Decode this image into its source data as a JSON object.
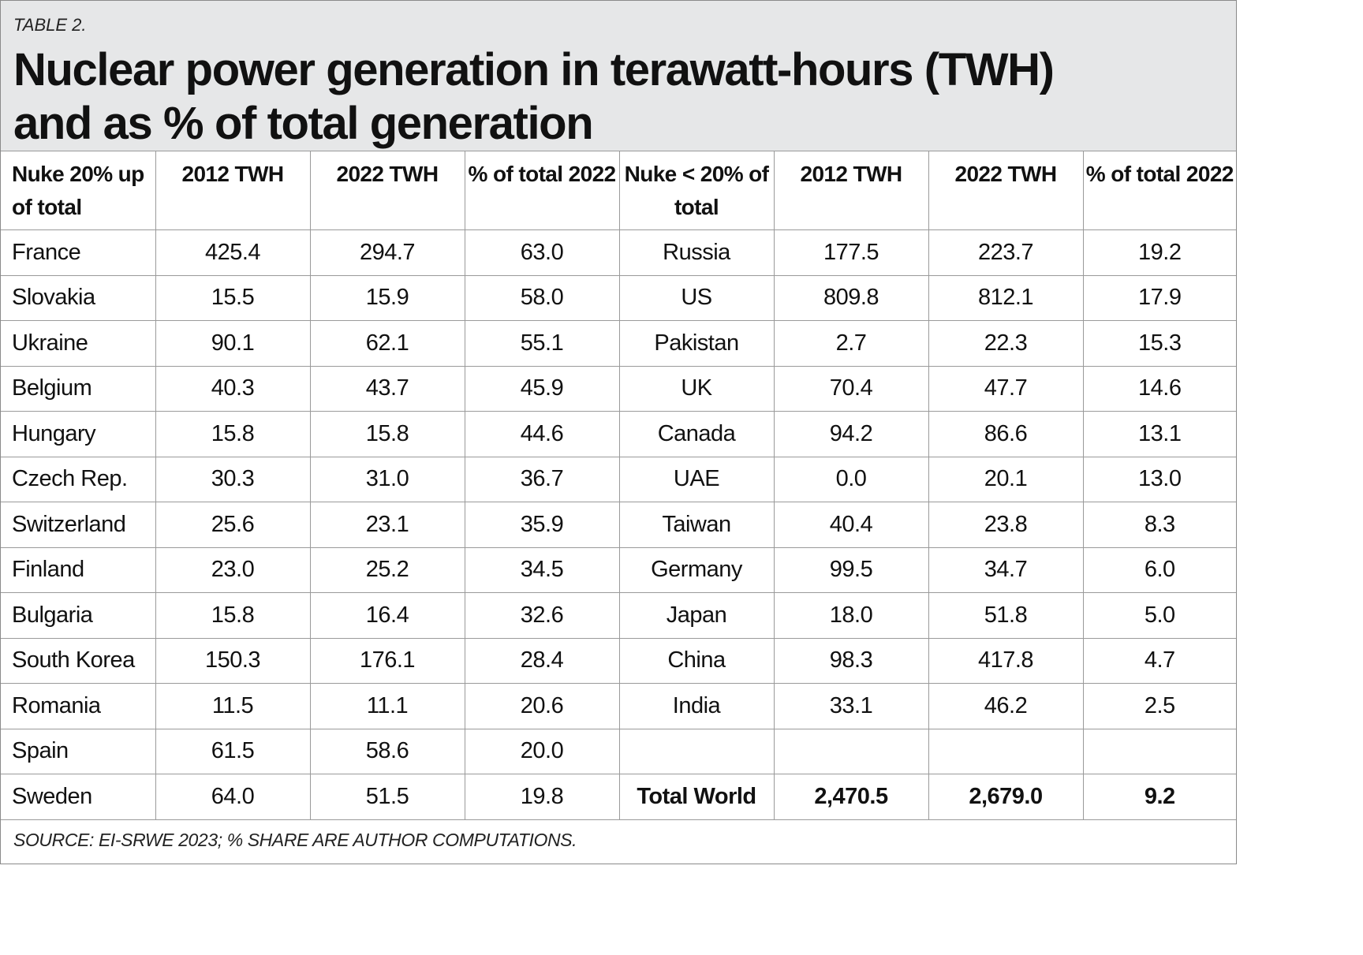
{
  "kicker": "TABLE 2.",
  "title_line1": "Nuclear power generation in terawatt-hours (TWH)",
  "title_line2": "and as % of total generation",
  "headers": {
    "left_group": "Nuke 20% up of total",
    "col_2012": "2012 TWH",
    "col_2022": "2022 TWH",
    "col_pct": "% of total 2022",
    "right_group": "Nuke < 20% of total"
  },
  "rows": [
    {
      "l_country": "France",
      "l_2012": "425.4",
      "l_2022": "294.7",
      "l_pct": "63.0",
      "r_country": "Russia",
      "r_2012": "177.5",
      "r_2022": "223.7",
      "r_pct": "19.2"
    },
    {
      "l_country": "Slovakia",
      "l_2012": "15.5",
      "l_2022": "15.9",
      "l_pct": "58.0",
      "r_country": "US",
      "r_2012": "809.8",
      "r_2022": "812.1",
      "r_pct": "17.9"
    },
    {
      "l_country": "Ukraine",
      "l_2012": "90.1",
      "l_2022": "62.1",
      "l_pct": "55.1",
      "r_country": "Pakistan",
      "r_2012": "2.7",
      "r_2022": "22.3",
      "r_pct": "15.3"
    },
    {
      "l_country": "Belgium",
      "l_2012": "40.3",
      "l_2022": "43.7",
      "l_pct": "45.9",
      "r_country": "UK",
      "r_2012": "70.4",
      "r_2022": "47.7",
      "r_pct": "14.6"
    },
    {
      "l_country": "Hungary",
      "l_2012": "15.8",
      "l_2022": "15.8",
      "l_pct": "44.6",
      "r_country": "Canada",
      "r_2012": "94.2",
      "r_2022": "86.6",
      "r_pct": "13.1"
    },
    {
      "l_country": "Czech Rep.",
      "l_2012": "30.3",
      "l_2022": "31.0",
      "l_pct": "36.7",
      "r_country": "UAE",
      "r_2012": "0.0",
      "r_2022": "20.1",
      "r_pct": "13.0"
    },
    {
      "l_country": "Switzerland",
      "l_2012": "25.6",
      "l_2022": "23.1",
      "l_pct": "35.9",
      "r_country": "Taiwan",
      "r_2012": "40.4",
      "r_2022": "23.8",
      "r_pct": "8.3"
    },
    {
      "l_country": "Finland",
      "l_2012": "23.0",
      "l_2022": "25.2",
      "l_pct": "34.5",
      "r_country": "Germany",
      "r_2012": "99.5",
      "r_2022": "34.7",
      "r_pct": "6.0"
    },
    {
      "l_country": "Bulgaria",
      "l_2012": "15.8",
      "l_2022": "16.4",
      "l_pct": "32.6",
      "r_country": "Japan",
      "r_2012": "18.0",
      "r_2022": "51.8",
      "r_pct": "5.0"
    },
    {
      "l_country": "South Korea",
      "l_2012": "150.3",
      "l_2022": "176.1",
      "l_pct": "28.4",
      "r_country": "China",
      "r_2012": "98.3",
      "r_2022": "417.8",
      "r_pct": "4.7"
    },
    {
      "l_country": "Romania",
      "l_2012": "11.5",
      "l_2022": "11.1",
      "l_pct": "20.6",
      "r_country": "India",
      "r_2012": "33.1",
      "r_2022": "46.2",
      "r_pct": "2.5"
    },
    {
      "l_country": "Spain",
      "l_2012": "61.5",
      "l_2022": "58.6",
      "l_pct": "20.0",
      "r_country": "",
      "r_2012": "",
      "r_2022": "",
      "r_pct": ""
    },
    {
      "l_country": "Sweden",
      "l_2012": "64.0",
      "l_2022": "51.5",
      "l_pct": "19.8",
      "r_country": "Total World",
      "r_2012": "2,470.5",
      "r_2022": "2,679.0",
      "r_pct": "9.2"
    }
  ],
  "source": "SOURCE: EI-SRWE 2023; % SHARE ARE AUTHOR COMPUTATIONS."
}
